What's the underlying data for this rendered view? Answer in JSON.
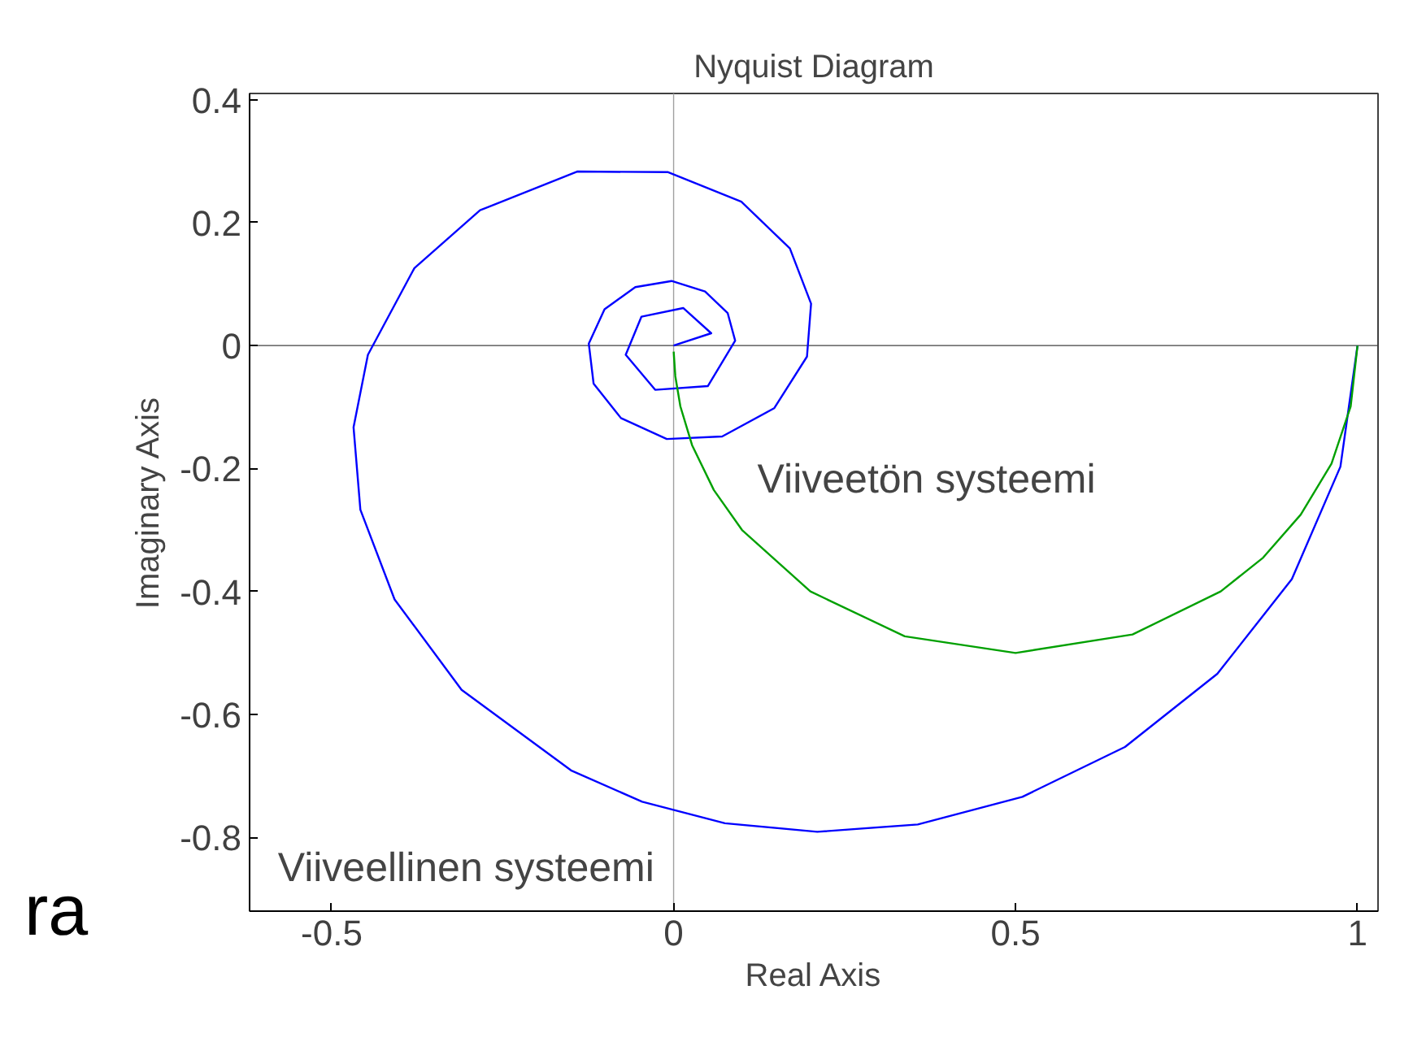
{
  "chart_data": {
    "type": "line",
    "title": "Nyquist Diagram",
    "xlabel": "Real Axis",
    "ylabel": "Imaginary Axis",
    "xlim": [
      -0.62,
      1.03
    ],
    "ylim": [
      -0.92,
      0.41
    ],
    "xticks": [
      -0.5,
      0,
      0.5,
      1
    ],
    "yticks": [
      -0.8,
      -0.6,
      -0.4,
      -0.2,
      0,
      0.2,
      0.4
    ],
    "grid": false,
    "marker": "none",
    "line_style": "solid",
    "series": [
      {
        "color": "#0000ff",
        "x": [
          1,
          0.975,
          0.904,
          0.795,
          0.66,
          0.51,
          0.357,
          0.21,
          0.075,
          -0.046,
          -0.15,
          -0.31,
          -0.408,
          -0.458,
          -0.468,
          -0.447,
          -0.379,
          -0.283,
          -0.141,
          -0.008,
          0.099,
          0.17,
          0.201,
          0.195,
          0.147,
          0.071,
          -0.01,
          -0.077,
          -0.117,
          -0.124,
          -0.101,
          -0.056,
          -0.003,
          0.046,
          0.079,
          0.09,
          0.05,
          -0.027,
          -0.07,
          -0.047,
          0.014,
          0.055,
          0
        ],
        "values": [
          0,
          -0.197,
          -0.38,
          -0.534,
          -0.653,
          -0.734,
          -0.779,
          -0.791,
          -0.777,
          -0.742,
          -0.691,
          -0.56,
          -0.413,
          -0.267,
          -0.133,
          -0.015,
          0.126,
          0.22,
          0.283,
          0.282,
          0.234,
          0.158,
          0.068,
          -0.018,
          -0.102,
          -0.148,
          -0.152,
          -0.118,
          -0.062,
          0.003,
          0.059,
          0.095,
          0.105,
          0.088,
          0.053,
          0.008,
          -0.066,
          -0.072,
          -0.015,
          0.047,
          0.061,
          0.02,
          0
        ]
      },
      {
        "color": "#00a000",
        "x": [
          1,
          0.99,
          0.962,
          0.917,
          0.862,
          0.8,
          0.671,
          0.5,
          0.338,
          0.2,
          0.1,
          0.0588,
          0.027,
          0.0099,
          0.0025,
          0.0001
        ],
        "values": [
          0,
          -0.099,
          -0.192,
          -0.275,
          -0.345,
          -0.4,
          -0.47,
          -0.5,
          -0.473,
          -0.4,
          -0.3,
          -0.235,
          -0.162,
          -0.099,
          -0.05,
          -0.01
        ]
      }
    ],
    "ref_lines": [
      {
        "axis": "x",
        "value": 0,
        "color": "#a0a0a0"
      },
      {
        "axis": "y",
        "value": 0,
        "color": "#404040"
      }
    ],
    "annotations": [
      "Viiveetön systeemi",
      "Viiveellinen systeemi",
      "ra"
    ]
  }
}
